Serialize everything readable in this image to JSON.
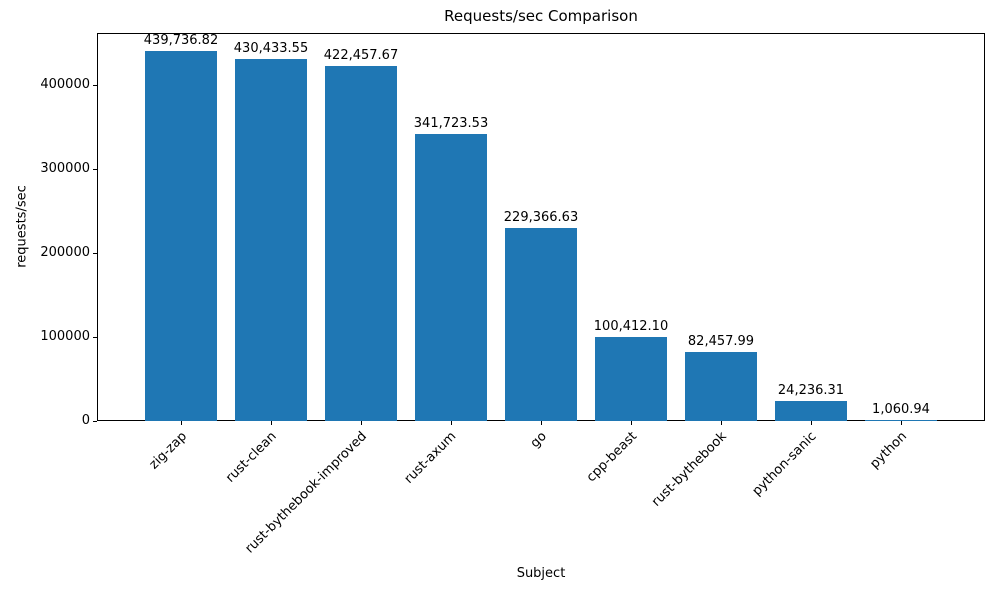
{
  "chart_data": {
    "type": "bar",
    "title": "Requests/sec Comparison",
    "xlabel": "Subject",
    "ylabel": "requests/sec",
    "categories": [
      "zig-zap",
      "rust-clean",
      "rust-bythebook-improved",
      "rust-axum",
      "go",
      "cpp-beast",
      "rust-bythebook",
      "python-sanic",
      "python"
    ],
    "values": [
      439736.82,
      430433.55,
      422457.67,
      341723.53,
      229366.63,
      100412.1,
      82457.99,
      24236.31,
      1060.94
    ],
    "value_labels": [
      "439,736.82",
      "430,433.55",
      "422,457.67",
      "341,723.53",
      "229,366.63",
      "100,412.10",
      "82,457.99",
      "24,236.31",
      "1,060.94"
    ],
    "yticks": [
      0,
      100000,
      200000,
      300000,
      400000
    ],
    "ytick_labels": [
      "0",
      "100000",
      "200000",
      "300000",
      "400000"
    ],
    "ylim": [
      0,
      461723.66
    ],
    "bar_color": "#1f77b4",
    "grid": false,
    "legend_position": "none"
  }
}
